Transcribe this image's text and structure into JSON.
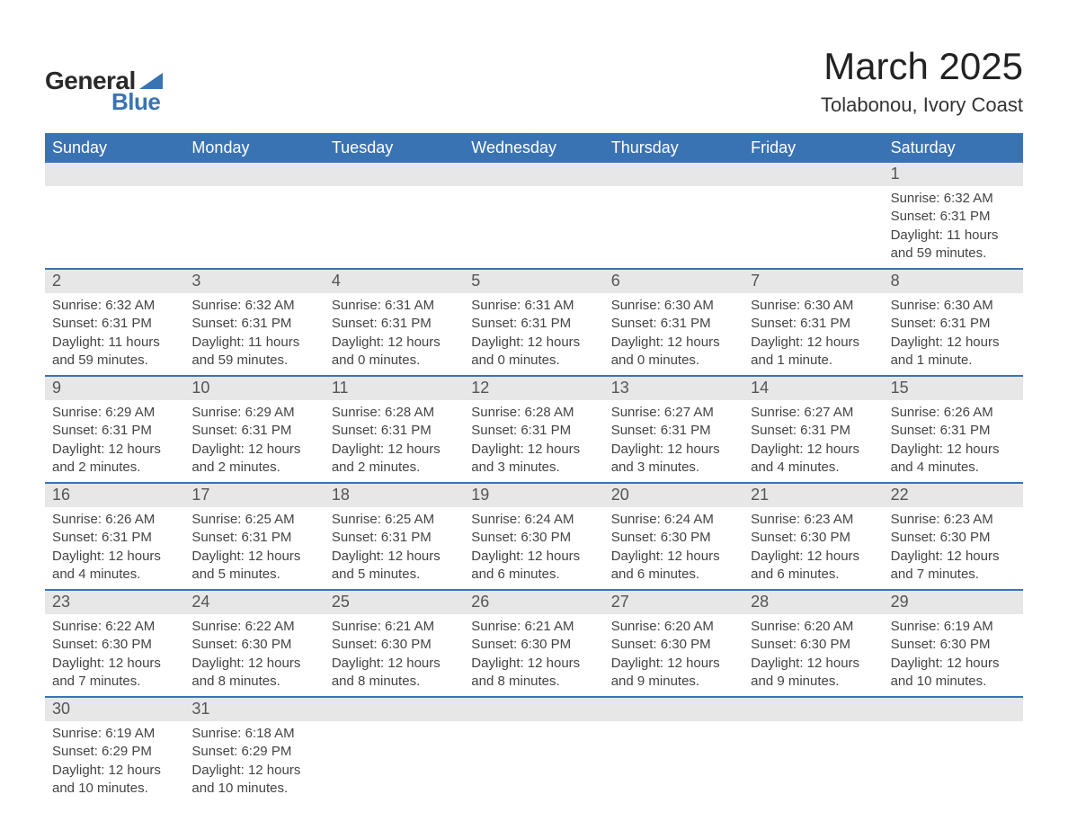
{
  "logo": {
    "text_general": "General",
    "text_blue": "Blue",
    "mark_color": "#3a73b4"
  },
  "title": {
    "month": "March 2025",
    "location": "Tolabonou, Ivory Coast"
  },
  "colors": {
    "header_bg": "#3a73b4",
    "header_text": "#ffffff",
    "daynum_bg": "#e7e7e7",
    "daynum_text": "#555555",
    "body_text": "#444444",
    "row_border": "#3a73b4",
    "page_bg": "#ffffff"
  },
  "typography": {
    "month_title_fontsize": 42,
    "location_fontsize": 22,
    "weekday_fontsize": 18,
    "daynum_fontsize": 18,
    "body_fontsize": 15,
    "font_family": "Arial"
  },
  "weekdays": [
    "Sunday",
    "Monday",
    "Tuesday",
    "Wednesday",
    "Thursday",
    "Friday",
    "Saturday"
  ],
  "weeks": [
    [
      {
        "day": "",
        "sunrise": "",
        "sunset": "",
        "daylight": ""
      },
      {
        "day": "",
        "sunrise": "",
        "sunset": "",
        "daylight": ""
      },
      {
        "day": "",
        "sunrise": "",
        "sunset": "",
        "daylight": ""
      },
      {
        "day": "",
        "sunrise": "",
        "sunset": "",
        "daylight": ""
      },
      {
        "day": "",
        "sunrise": "",
        "sunset": "",
        "daylight": ""
      },
      {
        "day": "",
        "sunrise": "",
        "sunset": "",
        "daylight": ""
      },
      {
        "day": "1",
        "sunrise": "Sunrise: 6:32 AM",
        "sunset": "Sunset: 6:31 PM",
        "daylight": "Daylight: 11 hours and 59 minutes."
      }
    ],
    [
      {
        "day": "2",
        "sunrise": "Sunrise: 6:32 AM",
        "sunset": "Sunset: 6:31 PM",
        "daylight": "Daylight: 11 hours and 59 minutes."
      },
      {
        "day": "3",
        "sunrise": "Sunrise: 6:32 AM",
        "sunset": "Sunset: 6:31 PM",
        "daylight": "Daylight: 11 hours and 59 minutes."
      },
      {
        "day": "4",
        "sunrise": "Sunrise: 6:31 AM",
        "sunset": "Sunset: 6:31 PM",
        "daylight": "Daylight: 12 hours and 0 minutes."
      },
      {
        "day": "5",
        "sunrise": "Sunrise: 6:31 AM",
        "sunset": "Sunset: 6:31 PM",
        "daylight": "Daylight: 12 hours and 0 minutes."
      },
      {
        "day": "6",
        "sunrise": "Sunrise: 6:30 AM",
        "sunset": "Sunset: 6:31 PM",
        "daylight": "Daylight: 12 hours and 0 minutes."
      },
      {
        "day": "7",
        "sunrise": "Sunrise: 6:30 AM",
        "sunset": "Sunset: 6:31 PM",
        "daylight": "Daylight: 12 hours and 1 minute."
      },
      {
        "day": "8",
        "sunrise": "Sunrise: 6:30 AM",
        "sunset": "Sunset: 6:31 PM",
        "daylight": "Daylight: 12 hours and 1 minute."
      }
    ],
    [
      {
        "day": "9",
        "sunrise": "Sunrise: 6:29 AM",
        "sunset": "Sunset: 6:31 PM",
        "daylight": "Daylight: 12 hours and 2 minutes."
      },
      {
        "day": "10",
        "sunrise": "Sunrise: 6:29 AM",
        "sunset": "Sunset: 6:31 PM",
        "daylight": "Daylight: 12 hours and 2 minutes."
      },
      {
        "day": "11",
        "sunrise": "Sunrise: 6:28 AM",
        "sunset": "Sunset: 6:31 PM",
        "daylight": "Daylight: 12 hours and 2 minutes."
      },
      {
        "day": "12",
        "sunrise": "Sunrise: 6:28 AM",
        "sunset": "Sunset: 6:31 PM",
        "daylight": "Daylight: 12 hours and 3 minutes."
      },
      {
        "day": "13",
        "sunrise": "Sunrise: 6:27 AM",
        "sunset": "Sunset: 6:31 PM",
        "daylight": "Daylight: 12 hours and 3 minutes."
      },
      {
        "day": "14",
        "sunrise": "Sunrise: 6:27 AM",
        "sunset": "Sunset: 6:31 PM",
        "daylight": "Daylight: 12 hours and 4 minutes."
      },
      {
        "day": "15",
        "sunrise": "Sunrise: 6:26 AM",
        "sunset": "Sunset: 6:31 PM",
        "daylight": "Daylight: 12 hours and 4 minutes."
      }
    ],
    [
      {
        "day": "16",
        "sunrise": "Sunrise: 6:26 AM",
        "sunset": "Sunset: 6:31 PM",
        "daylight": "Daylight: 12 hours and 4 minutes."
      },
      {
        "day": "17",
        "sunrise": "Sunrise: 6:25 AM",
        "sunset": "Sunset: 6:31 PM",
        "daylight": "Daylight: 12 hours and 5 minutes."
      },
      {
        "day": "18",
        "sunrise": "Sunrise: 6:25 AM",
        "sunset": "Sunset: 6:31 PM",
        "daylight": "Daylight: 12 hours and 5 minutes."
      },
      {
        "day": "19",
        "sunrise": "Sunrise: 6:24 AM",
        "sunset": "Sunset: 6:30 PM",
        "daylight": "Daylight: 12 hours and 6 minutes."
      },
      {
        "day": "20",
        "sunrise": "Sunrise: 6:24 AM",
        "sunset": "Sunset: 6:30 PM",
        "daylight": "Daylight: 12 hours and 6 minutes."
      },
      {
        "day": "21",
        "sunrise": "Sunrise: 6:23 AM",
        "sunset": "Sunset: 6:30 PM",
        "daylight": "Daylight: 12 hours and 6 minutes."
      },
      {
        "day": "22",
        "sunrise": "Sunrise: 6:23 AM",
        "sunset": "Sunset: 6:30 PM",
        "daylight": "Daylight: 12 hours and 7 minutes."
      }
    ],
    [
      {
        "day": "23",
        "sunrise": "Sunrise: 6:22 AM",
        "sunset": "Sunset: 6:30 PM",
        "daylight": "Daylight: 12 hours and 7 minutes."
      },
      {
        "day": "24",
        "sunrise": "Sunrise: 6:22 AM",
        "sunset": "Sunset: 6:30 PM",
        "daylight": "Daylight: 12 hours and 8 minutes."
      },
      {
        "day": "25",
        "sunrise": "Sunrise: 6:21 AM",
        "sunset": "Sunset: 6:30 PM",
        "daylight": "Daylight: 12 hours and 8 minutes."
      },
      {
        "day": "26",
        "sunrise": "Sunrise: 6:21 AM",
        "sunset": "Sunset: 6:30 PM",
        "daylight": "Daylight: 12 hours and 8 minutes."
      },
      {
        "day": "27",
        "sunrise": "Sunrise: 6:20 AM",
        "sunset": "Sunset: 6:30 PM",
        "daylight": "Daylight: 12 hours and 9 minutes."
      },
      {
        "day": "28",
        "sunrise": "Sunrise: 6:20 AM",
        "sunset": "Sunset: 6:30 PM",
        "daylight": "Daylight: 12 hours and 9 minutes."
      },
      {
        "day": "29",
        "sunrise": "Sunrise: 6:19 AM",
        "sunset": "Sunset: 6:30 PM",
        "daylight": "Daylight: 12 hours and 10 minutes."
      }
    ],
    [
      {
        "day": "30",
        "sunrise": "Sunrise: 6:19 AM",
        "sunset": "Sunset: 6:29 PM",
        "daylight": "Daylight: 12 hours and 10 minutes."
      },
      {
        "day": "31",
        "sunrise": "Sunrise: 6:18 AM",
        "sunset": "Sunset: 6:29 PM",
        "daylight": "Daylight: 12 hours and 10 minutes."
      },
      {
        "day": "",
        "sunrise": "",
        "sunset": "",
        "daylight": ""
      },
      {
        "day": "",
        "sunrise": "",
        "sunset": "",
        "daylight": ""
      },
      {
        "day": "",
        "sunrise": "",
        "sunset": "",
        "daylight": ""
      },
      {
        "day": "",
        "sunrise": "",
        "sunset": "",
        "daylight": ""
      },
      {
        "day": "",
        "sunrise": "",
        "sunset": "",
        "daylight": ""
      }
    ]
  ]
}
